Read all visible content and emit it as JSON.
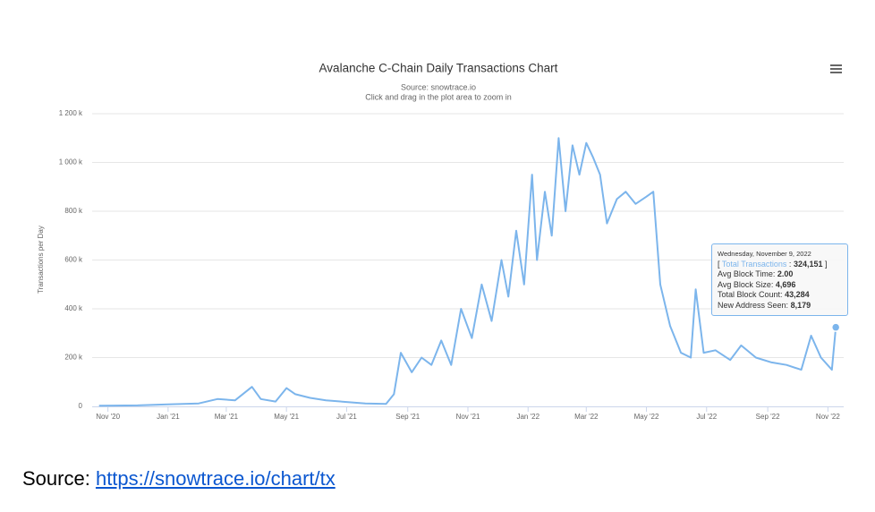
{
  "chart_data": {
    "type": "line",
    "title": "Avalanche C-Chain Daily Transactions Chart",
    "subtitle": [
      "Source: snowtrace.io",
      "Click and drag in the plot area to zoom in"
    ],
    "y_label": "Transactions per Day",
    "x": [
      "2020-10-23",
      "2020-12-01",
      "2021-01-01",
      "2021-02-01",
      "2021-02-20",
      "2021-03-10",
      "2021-03-27",
      "2021-04-05",
      "2021-04-20",
      "2021-05-01",
      "2021-05-10",
      "2021-05-25",
      "2021-06-10",
      "2021-07-01",
      "2021-07-20",
      "2021-08-10",
      "2021-08-18",
      "2021-08-25",
      "2021-09-05",
      "2021-09-15",
      "2021-09-25",
      "2021-10-05",
      "2021-10-15",
      "2021-10-25",
      "2021-11-05",
      "2021-11-15",
      "2021-11-25",
      "2021-12-05",
      "2021-12-12",
      "2021-12-20",
      "2021-12-28",
      "2022-01-05",
      "2022-01-10",
      "2022-01-18",
      "2022-01-25",
      "2022-02-01",
      "2022-02-08",
      "2022-02-15",
      "2022-02-22",
      "2022-03-01",
      "2022-03-08",
      "2022-03-15",
      "2022-03-22",
      "2022-04-01",
      "2022-04-10",
      "2022-04-20",
      "2022-05-01",
      "2022-05-08",
      "2022-05-15",
      "2022-05-25",
      "2022-06-05",
      "2022-06-15",
      "2022-06-20",
      "2022-06-28",
      "2022-07-10",
      "2022-07-25",
      "2022-08-05",
      "2022-08-20",
      "2022-09-05",
      "2022-09-20",
      "2022-10-05",
      "2022-10-15",
      "2022-10-25",
      "2022-11-05",
      "2022-11-09"
    ],
    "series": [
      {
        "name": "Total Transactions",
        "color": "#7cb5ec",
        "values": [
          3000,
          4000,
          8000,
          12000,
          30000,
          25000,
          80000,
          30000,
          20000,
          75000,
          50000,
          35000,
          25000,
          18000,
          12000,
          10000,
          50000,
          220000,
          140000,
          200000,
          170000,
          270000,
          170000,
          400000,
          280000,
          500000,
          350000,
          600000,
          450000,
          720000,
          500000,
          950000,
          600000,
          880000,
          700000,
          1100000,
          800000,
          1070000,
          950000,
          1080000,
          1020000,
          950000,
          750000,
          850000,
          880000,
          830000,
          860000,
          880000,
          500000,
          330000,
          220000,
          200000,
          480000,
          220000,
          230000,
          190000,
          250000,
          200000,
          180000,
          170000,
          150000,
          290000,
          200000,
          150000,
          324151
        ]
      }
    ],
    "xlim": [
      "2020-10-16",
      "2022-11-17"
    ],
    "xticks": [
      {
        "value": "2020-11-01",
        "label": "Nov '20"
      },
      {
        "value": "2021-01-01",
        "label": "Jan '21"
      },
      {
        "value": "2021-03-01",
        "label": "Mar '21"
      },
      {
        "value": "2021-05-01",
        "label": "May '21"
      },
      {
        "value": "2021-07-01",
        "label": "Jul '21"
      },
      {
        "value": "2021-09-01",
        "label": "Sep '21"
      },
      {
        "value": "2021-11-01",
        "label": "Nov '21"
      },
      {
        "value": "2022-01-01",
        "label": "Jan '22"
      },
      {
        "value": "2022-03-01",
        "label": "Mar '22"
      },
      {
        "value": "2022-05-01",
        "label": "May '22"
      },
      {
        "value": "2022-07-01",
        "label": "Jul '22"
      },
      {
        "value": "2022-09-01",
        "label": "Sep '22"
      },
      {
        "value": "2022-11-01",
        "label": "Nov '22"
      }
    ],
    "ylim": [
      0,
      1200000
    ],
    "yticks": [
      0,
      {
        "value": 200000,
        "label": "200 k"
      },
      {
        "value": 400000,
        "label": "400 k"
      },
      {
        "value": 600000,
        "label": "600 k"
      },
      {
        "value": 800000,
        "label": "800 k"
      },
      {
        "value": 1000000,
        "label": "1 000 k"
      },
      {
        "value": 1200000,
        "label": "1 200 k"
      }
    ],
    "grid": true,
    "tooltip": {
      "date": "Wednesday, November 9, 2022",
      "bracket_open": "[",
      "separator": ":",
      "total": "324,151",
      "bracket_close": "]",
      "rows": [
        {
          "label": "Avg Block Time:",
          "value": "2.00"
        },
        {
          "label": "Avg Block Size:",
          "value": "4,696"
        },
        {
          "label": "Total Block Count:",
          "value": "43,284"
        },
        {
          "label": "New Address Seen:",
          "value": "8,179"
        }
      ]
    }
  },
  "caption": {
    "prefix": "Source:",
    "link": "https://snowtrace.io/chart/tx"
  }
}
